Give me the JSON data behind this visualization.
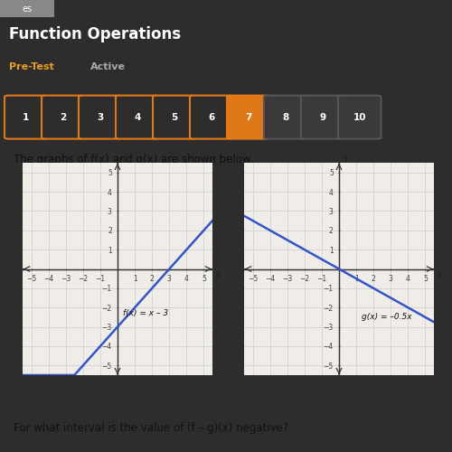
{
  "title": "Function Operations",
  "pre_test": "Pre-Test",
  "active_text": "Active",
  "question_text": "The graphs of f(x) and g(x) are shown below.",
  "bottom_text": "For what interval is the value of (f – g)(x) negative?",
  "nav_buttons": [
    "1",
    "2",
    "3",
    "4",
    "5",
    "6",
    "7",
    "8",
    "9",
    "10"
  ],
  "active_button": "7",
  "f_label": "f(x) = x – 3",
  "g_label": "g(x) = –0.5x",
  "f_slope": 1,
  "f_intercept": -3,
  "g_slope": -0.5,
  "g_intercept": 0,
  "xlim": [
    -5.5,
    5.5
  ],
  "ylim": [
    -5.5,
    5.5
  ],
  "line_color": "#3355cc",
  "header_bg": "#2d2d2d",
  "nav_bg": "#252525",
  "body_bg": "#f5f5f0",
  "graph_bg": "#f0ede8",
  "title_color": "#ffffff",
  "pretest_color": "#e8a020",
  "active_color": "#aaaaaa",
  "btn_active_bg": "#e07818",
  "btn_active_border": "#e07818",
  "btn_inactive_bg": "#2d2d2d",
  "btn_inactive_border": "#e07818",
  "btn_locked_bg": "#3a3a3a",
  "btn_locked_border": "#555555",
  "btn_text_color": "#ffffff",
  "grid_color": "#cccccc",
  "axis_color": "#555555",
  "tick_label_color": "#444444"
}
